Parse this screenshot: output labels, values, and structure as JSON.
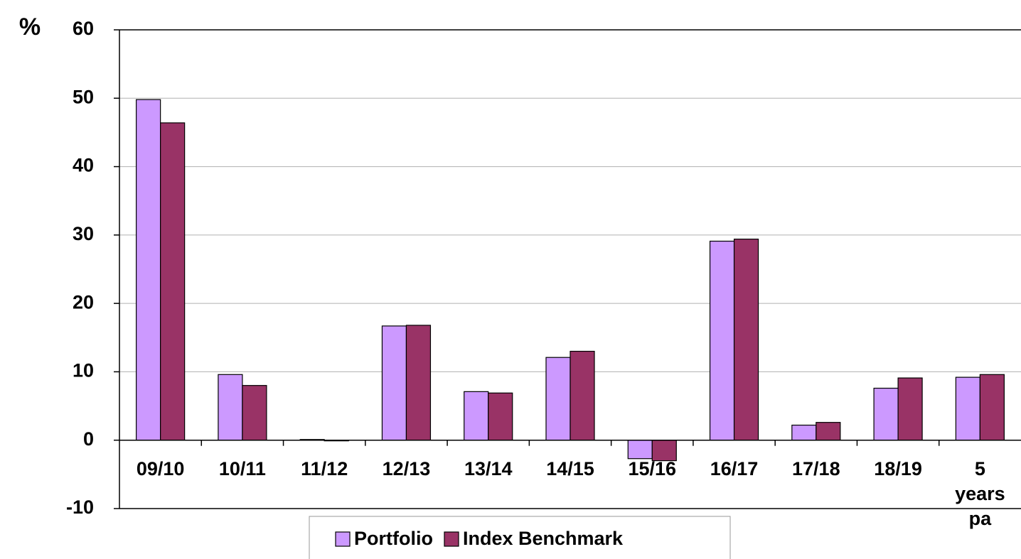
{
  "chart_data": {
    "type": "bar",
    "y_label": "%",
    "categories": [
      "09/10",
      "10/11",
      "11/12",
      "12/13",
      "13/14",
      "14/15",
      "15/16",
      "16/17",
      "17/18",
      "18/19",
      "5 years pa"
    ],
    "series": [
      {
        "name": "Portfolio",
        "color": "#cc99ff",
        "values": [
          49.8,
          9.6,
          0.1,
          16.7,
          7.1,
          12.1,
          -2.7,
          29.1,
          2.2,
          7.6,
          9.2
        ]
      },
      {
        "name": "Index Benchmark",
        "color": "#993366",
        "values": [
          46.4,
          8.0,
          -0.1,
          16.8,
          6.9,
          13.0,
          -3.0,
          29.4,
          2.6,
          9.1,
          9.6
        ]
      }
    ],
    "ylim": [
      -10,
      60
    ],
    "yticks": [
      -10,
      0,
      10,
      20,
      30,
      40,
      50,
      60
    ],
    "grid": true,
    "legend": "bottom"
  }
}
